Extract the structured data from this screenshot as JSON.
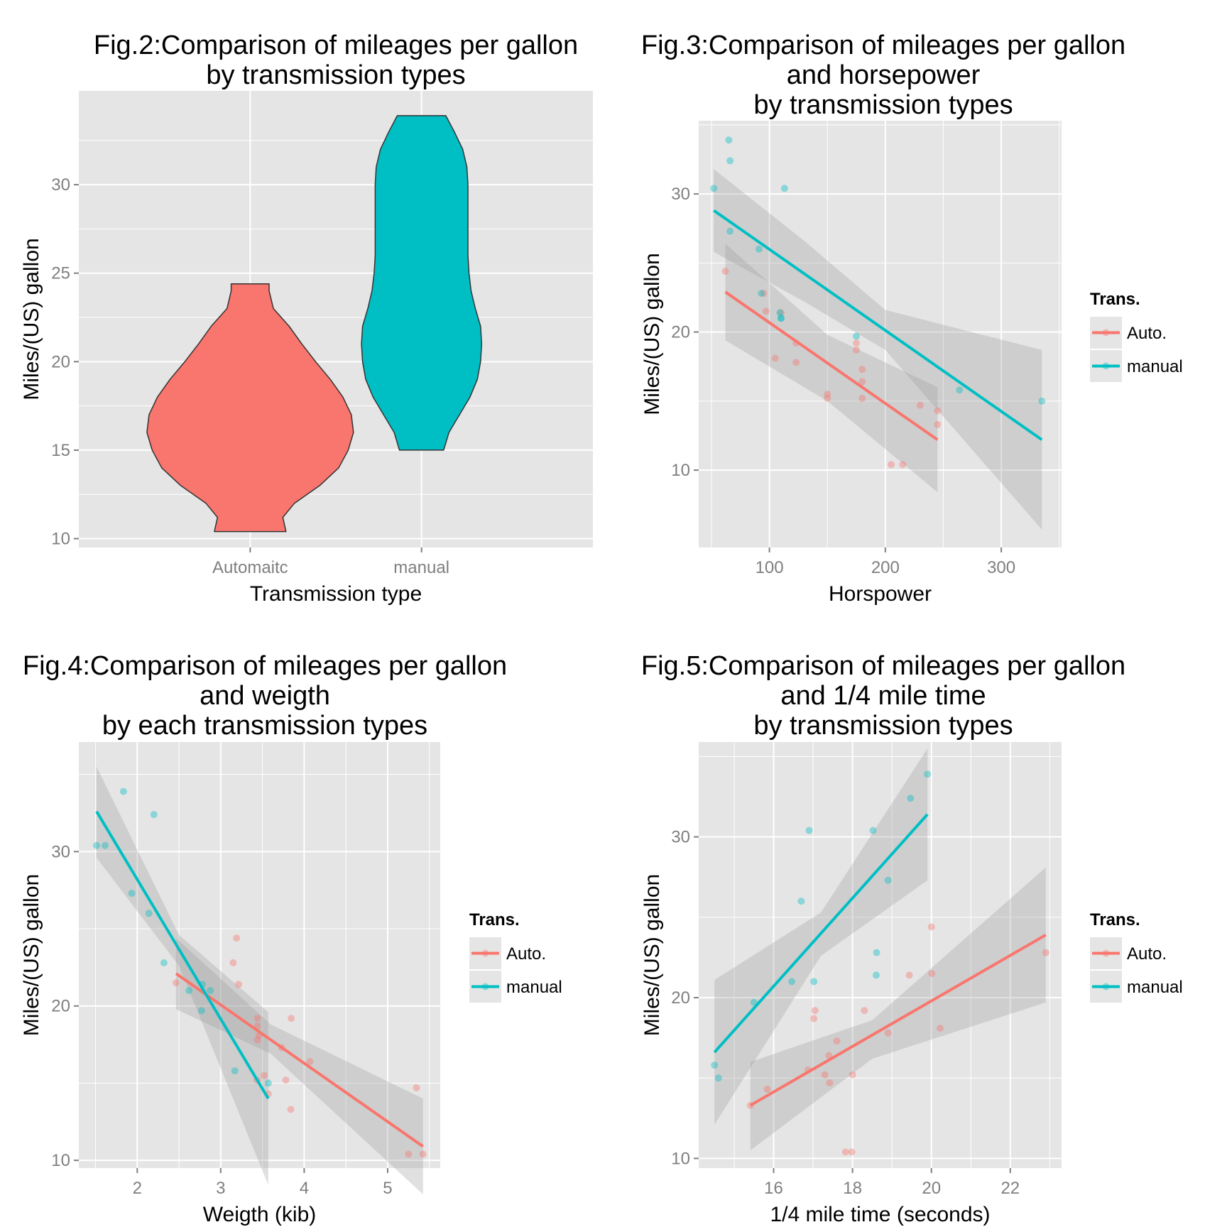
{
  "colors": {
    "auto": "#F8766D",
    "manual": "#00BFC4",
    "panel_bg": "#E5E5E5",
    "grid": "#FFFFFF",
    "ribbon": "#999999",
    "outline": "#333333"
  },
  "chart_data": [
    {
      "type": "violin",
      "title": [
        "Fig.2:Comparison of mileages per gallon",
        "by transmission types"
      ],
      "xlabel": "Transmission type",
      "ylabel": "Miles/(US) gallon",
      "categories": [
        "Automaitc",
        "manual"
      ],
      "ylim": [
        9.5,
        35.3
      ],
      "yticks": [
        10,
        15,
        20,
        25,
        30
      ],
      "grid": true,
      "series": [
        {
          "category": "Automaitc",
          "color_key": "auto",
          "y_range": [
            10.4,
            24.4
          ],
          "profile": [
            [
              10.4,
              0.34
            ],
            [
              11.2,
              0.31
            ],
            [
              12.0,
              0.42
            ],
            [
              13.0,
              0.66
            ],
            [
              14.0,
              0.84
            ],
            [
              15.0,
              0.93
            ],
            [
              16.0,
              0.98
            ],
            [
              17.0,
              0.96
            ],
            [
              18.0,
              0.88
            ],
            [
              19.0,
              0.76
            ],
            [
              20.0,
              0.62
            ],
            [
              21.0,
              0.49
            ],
            [
              22.0,
              0.37
            ],
            [
              23.0,
              0.22
            ],
            [
              24.0,
              0.18
            ],
            [
              24.4,
              0.18
            ]
          ]
        },
        {
          "category": "manual",
          "color_key": "manual",
          "y_range": [
            15.0,
            33.9
          ],
          "profile": [
            [
              15.0,
              0.21
            ],
            [
              16.0,
              0.26
            ],
            [
              17.0,
              0.36
            ],
            [
              18.0,
              0.46
            ],
            [
              19.0,
              0.53
            ],
            [
              20.0,
              0.56
            ],
            [
              21.0,
              0.57
            ],
            [
              22.0,
              0.56
            ],
            [
              23.0,
              0.51
            ],
            [
              24.0,
              0.47
            ],
            [
              25.0,
              0.45
            ],
            [
              26.0,
              0.44
            ],
            [
              27.0,
              0.44
            ],
            [
              28.0,
              0.44
            ],
            [
              29.0,
              0.44
            ],
            [
              30.0,
              0.44
            ],
            [
              31.0,
              0.43
            ],
            [
              32.0,
              0.39
            ],
            [
              33.0,
              0.31
            ],
            [
              33.9,
              0.23
            ]
          ]
        }
      ]
    },
    {
      "type": "scatter",
      "title": [
        "Fig.3:Comparison of mileages per gallon",
        "and horsepower",
        "by transmission types"
      ],
      "xlabel": "Horspower",
      "ylabel": "Miles/(US) gallon",
      "xlim": [
        39,
        352
      ],
      "ylim": [
        4.4,
        35.3
      ],
      "xticks": [
        100,
        200,
        300
      ],
      "yticks": [
        10,
        20,
        30
      ],
      "grid": true,
      "legend": {
        "title": "Trans.",
        "position": "right",
        "entries": [
          {
            "label": "Auto.",
            "color_key": "auto"
          },
          {
            "label": "manual",
            "color_key": "manual"
          }
        ]
      },
      "series": [
        {
          "name": "Auto.",
          "color_key": "auto",
          "points": [
            [
              62,
              24.4
            ],
            [
              95,
              22.8
            ],
            [
              105,
              18.1
            ],
            [
              97,
              21.5
            ],
            [
              110,
              21.4
            ],
            [
              175,
              18.7
            ],
            [
              175,
              19.2
            ],
            [
              123,
              17.8
            ],
            [
              123,
              19.2
            ],
            [
              150,
              15.5
            ],
            [
              150,
              15.2
            ],
            [
              180,
              16.4
            ],
            [
              180,
              17.3
            ],
            [
              180,
              15.2
            ],
            [
              205,
              10.4
            ],
            [
              215,
              10.4
            ],
            [
              230,
              14.7
            ],
            [
              245,
              14.3
            ],
            [
              245,
              13.3
            ]
          ],
          "fit": {
            "x_range": [
              62,
              245
            ],
            "y_range": [
              22.9,
              12.2
            ]
          },
          "band": [
            [
              62,
              26.4,
              19.4
            ],
            [
              150,
              19.8,
              15.0
            ],
            [
              245,
              16.0,
              8.4
            ]
          ]
        },
        {
          "name": "manual",
          "color_key": "manual",
          "points": [
            [
              52,
              30.4
            ],
            [
              66,
              27.3
            ],
            [
              65,
              33.9
            ],
            [
              66,
              32.4
            ],
            [
              91,
              26.0
            ],
            [
              93,
              22.8
            ],
            [
              109,
              21.4
            ],
            [
              110,
              21.0
            ],
            [
              110,
              21.0
            ],
            [
              113,
              30.4
            ],
            [
              175,
              19.7
            ],
            [
              264,
              15.8
            ],
            [
              335,
              15.0
            ]
          ],
          "fit": {
            "x_range": [
              52,
              335
            ],
            "y_range": [
              28.8,
              12.2
            ]
          },
          "band": [
            [
              52,
              31.8,
              25.8
            ],
            [
              130,
              26.6,
              22.2
            ],
            [
              200,
              21.6,
              18.7
            ],
            [
              335,
              18.7,
              5.7
            ]
          ]
        }
      ]
    },
    {
      "type": "scatter",
      "title": [
        "Fig.4:Comparison of mileages per gallon",
        "and weigth",
        "by each transmission types"
      ],
      "xlabel": "Weigth (kib)",
      "ylabel": "Miles/(US) gallon",
      "xlim": [
        1.3,
        5.63
      ],
      "ylim": [
        9.5,
        37.1
      ],
      "xticks": [
        2,
        3,
        4,
        5
      ],
      "yticks": [
        10,
        20,
        30
      ],
      "grid": true,
      "legend": {
        "title": "Trans.",
        "position": "right",
        "entries": [
          {
            "label": "Auto.",
            "color_key": "auto"
          },
          {
            "label": "manual",
            "color_key": "manual"
          }
        ]
      },
      "series": [
        {
          "name": "Auto.",
          "color_key": "auto",
          "points": [
            [
              3.215,
              21.4
            ],
            [
              3.44,
              18.7
            ],
            [
              3.46,
              18.1
            ],
            [
              3.57,
              14.3
            ],
            [
              3.19,
              24.4
            ],
            [
              3.15,
              22.8
            ],
            [
              3.44,
              19.2
            ],
            [
              3.44,
              17.8
            ],
            [
              4.07,
              16.4
            ],
            [
              3.73,
              17.3
            ],
            [
              3.78,
              15.2
            ],
            [
              5.25,
              10.4
            ],
            [
              5.424,
              10.4
            ],
            [
              5.345,
              14.7
            ],
            [
              2.465,
              21.5
            ],
            [
              3.52,
              15.5
            ],
            [
              3.435,
              15.2
            ],
            [
              3.84,
              13.3
            ],
            [
              3.845,
              19.2
            ]
          ],
          "fit": {
            "x_range": [
              2.465,
              5.424
            ],
            "y_range": [
              22.1,
              10.9
            ]
          },
          "band": [
            [
              2.465,
              24.4,
              19.8
            ],
            [
              3.6,
              18.8,
              16.9
            ],
            [
              5.424,
              14.0,
              7.8
            ]
          ]
        },
        {
          "name": "manual",
          "color_key": "manual",
          "points": [
            [
              2.62,
              21.0
            ],
            [
              2.875,
              21.0
            ],
            [
              2.32,
              22.8
            ],
            [
              2.2,
              32.4
            ],
            [
              1.615,
              30.4
            ],
            [
              1.835,
              33.9
            ],
            [
              1.935,
              27.3
            ],
            [
              2.14,
              26.0
            ],
            [
              1.513,
              30.4
            ],
            [
              3.17,
              15.8
            ],
            [
              2.77,
              19.7
            ],
            [
              3.57,
              15.0
            ],
            [
              2.78,
              21.4
            ]
          ],
          "fit": {
            "x_range": [
              1.513,
              3.57
            ],
            "y_range": [
              32.6,
              14.0
            ]
          },
          "band": [
            [
              1.513,
              35.5,
              29.6
            ],
            [
              2.5,
              24.6,
              22.6
            ],
            [
              3.57,
              19.6,
              8.4
            ]
          ]
        }
      ]
    },
    {
      "type": "scatter",
      "title": [
        "Fig.5:Comparison of mileages per gallon",
        "and 1/4 mile time",
        "by transmission types"
      ],
      "xlabel": "1/4 mile time (seconds)",
      "ylabel": "Miles/(US) gallon",
      "xlim": [
        14.1,
        23.3
      ],
      "ylim": [
        9.4,
        35.9
      ],
      "xticks": [
        16,
        18,
        20,
        22
      ],
      "yticks": [
        10,
        20,
        30
      ],
      "grid": true,
      "legend": {
        "title": "Trans.",
        "position": "right",
        "entries": [
          {
            "label": "Auto.",
            "color_key": "auto"
          },
          {
            "label": "manual",
            "color_key": "manual"
          }
        ]
      },
      "series": [
        {
          "name": "Auto.",
          "color_key": "auto",
          "points": [
            [
              19.44,
              21.4
            ],
            [
              17.02,
              18.7
            ],
            [
              20.22,
              18.1
            ],
            [
              15.84,
              14.3
            ],
            [
              20.0,
              24.4
            ],
            [
              22.9,
              22.8
            ],
            [
              18.3,
              19.2
            ],
            [
              18.9,
              17.8
            ],
            [
              17.4,
              16.4
            ],
            [
              17.6,
              17.3
            ],
            [
              18.0,
              15.2
            ],
            [
              17.98,
              10.4
            ],
            [
              17.82,
              10.4
            ],
            [
              17.42,
              14.7
            ],
            [
              20.01,
              21.5
            ],
            [
              16.87,
              15.5
            ],
            [
              17.3,
              15.2
            ],
            [
              15.41,
              13.3
            ],
            [
              17.05,
              19.2
            ]
          ],
          "fit": {
            "x_range": [
              15.41,
              22.9
            ],
            "y_range": [
              13.3,
              23.9
            ]
          },
          "band": [
            [
              15.41,
              16.0,
              10.5
            ],
            [
              18.5,
              18.6,
              16.2
            ],
            [
              22.9,
              28.1,
              19.7
            ]
          ]
        },
        {
          "name": "manual",
          "color_key": "manual",
          "points": [
            [
              16.46,
              21.0
            ],
            [
              17.02,
              21.0
            ],
            [
              18.61,
              22.8
            ],
            [
              16.7,
              26.0
            ],
            [
              18.52,
              30.4
            ],
            [
              16.9,
              30.4
            ],
            [
              18.9,
              27.3
            ],
            [
              19.47,
              32.4
            ],
            [
              19.9,
              33.9
            ],
            [
              15.5,
              19.7
            ],
            [
              14.5,
              15.8
            ],
            [
              14.6,
              15.0
            ],
            [
              18.6,
              21.4
            ]
          ],
          "fit": {
            "x_range": [
              14.5,
              19.9
            ],
            "y_range": [
              16.6,
              31.4
            ]
          },
          "band": [
            [
              14.5,
              21.1,
              12.1
            ],
            [
              17.2,
              25.3,
              22.6
            ],
            [
              19.9,
              35.5,
              27.3
            ]
          ]
        }
      ]
    }
  ]
}
